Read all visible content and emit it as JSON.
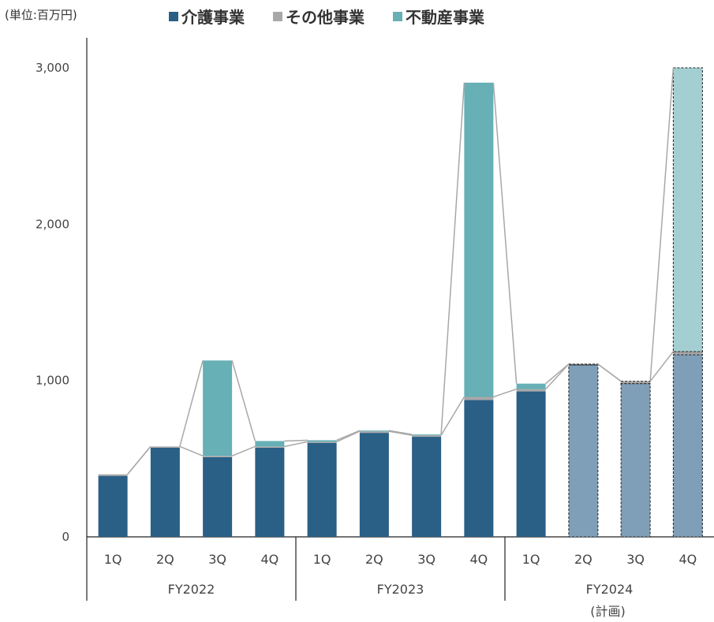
{
  "unit_label": "(単位:百万円)",
  "legend": [
    {
      "label": "介護事業",
      "color": "#2a5f86"
    },
    {
      "label": "その他事業",
      "color": "#a8a8a8"
    },
    {
      "label": "不動産事業",
      "color": "#66b0b6"
    }
  ],
  "chart_data": {
    "type": "bar",
    "stacked": true,
    "ylim": [
      0,
      3000
    ],
    "yticks": [
      {
        "value": 0,
        "label": "0"
      },
      {
        "value": 1000,
        "label": "1,000"
      },
      {
        "value": 2000,
        "label": "2,000"
      },
      {
        "value": 3000,
        "label": "3,000"
      }
    ],
    "categories": [
      "1Q",
      "2Q",
      "3Q",
      "4Q",
      "1Q",
      "2Q",
      "3Q",
      "4Q",
      "1Q",
      "2Q",
      "3Q",
      "4Q"
    ],
    "groups": [
      {
        "label": "FY2022",
        "start": 0,
        "end": 3
      },
      {
        "label": "FY2023",
        "start": 4,
        "end": 7
      },
      {
        "label": "FY2024",
        "sublabel": "(計画)",
        "start": 8,
        "end": 11
      }
    ],
    "planned_from_index": 9,
    "series": [
      {
        "name": "介護事業",
        "color": "#2a5f86",
        "planned_color": "#7f9fb8",
        "values": [
          390,
          570,
          510,
          570,
          600,
          665,
          640,
          875,
          930,
          1100,
          980,
          1165
        ]
      },
      {
        "name": "その他事業",
        "color": "#a8a8a8",
        "planned_color": "#a8a8a8",
        "values": [
          10,
          8,
          8,
          8,
          8,
          10,
          10,
          20,
          15,
          5,
          15,
          20
        ]
      },
      {
        "name": "不動産事業",
        "color": "#66b0b6",
        "planned_color": "#a3cfd2",
        "values": [
          0,
          0,
          610,
          35,
          10,
          5,
          5,
          2010,
          35,
          0,
          0,
          1815
        ]
      }
    ]
  }
}
